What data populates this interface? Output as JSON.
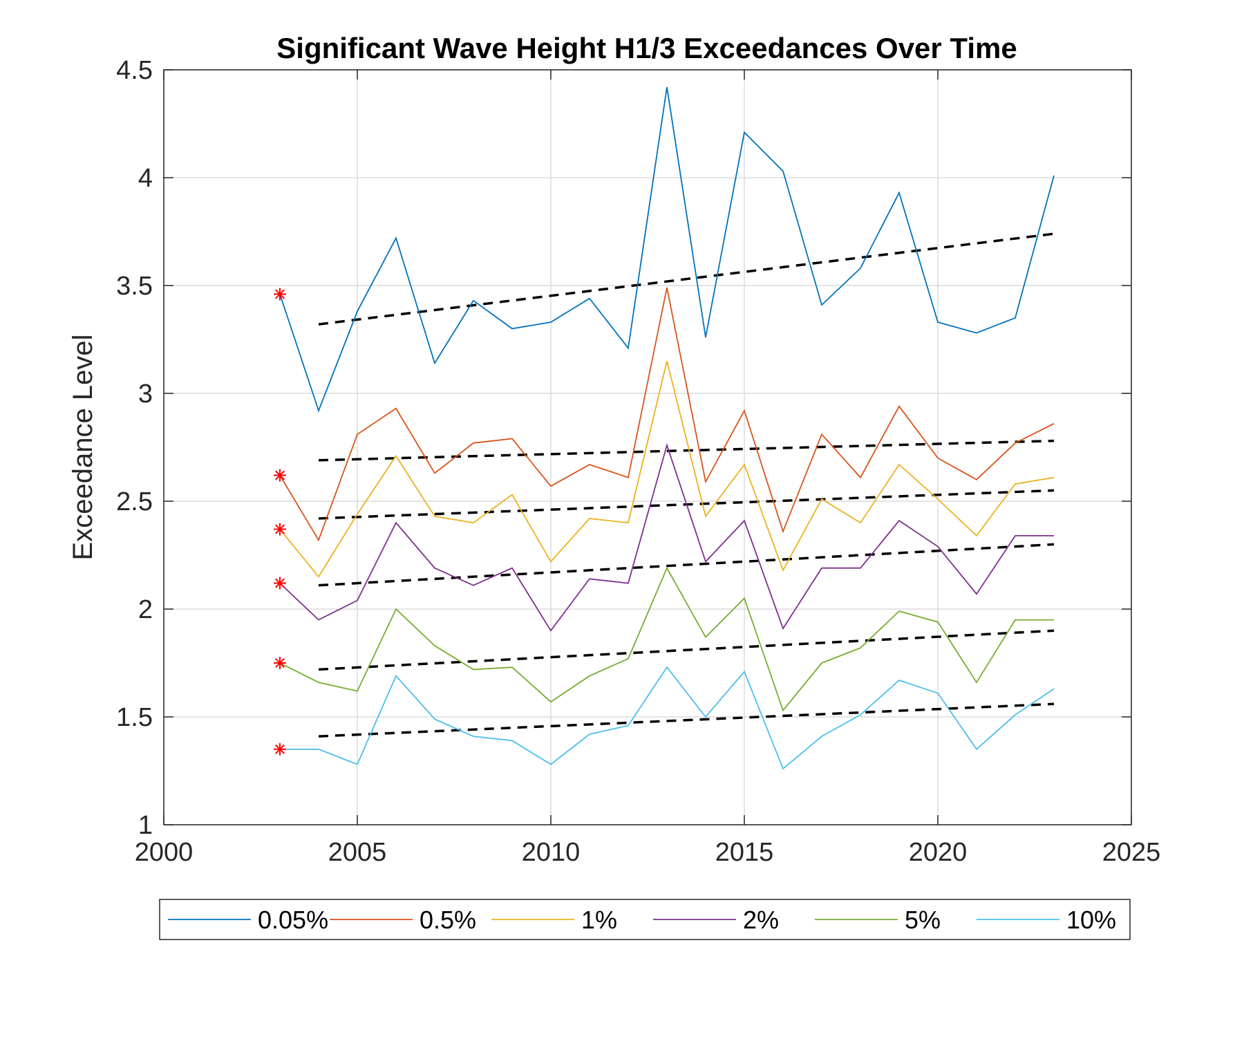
{
  "chart_data": {
    "type": "line",
    "title": "Significant Wave Height H1/3 Exceedances Over Time",
    "xlabel": "",
    "ylabel": "Exceedance Level",
    "xlim": [
      2000,
      2025
    ],
    "ylim": [
      1,
      4.5
    ],
    "xticks": [
      "2000",
      "2005",
      "2010",
      "2015",
      "2020",
      "2025"
    ],
    "yticks": [
      "1",
      "1.5",
      "2",
      "2.5",
      "3",
      "3.5",
      "4",
      "4.5"
    ],
    "grid": true,
    "legend": {
      "placement": "bottom-outside",
      "orientation": "horizontal"
    },
    "x": [
      2003,
      2004,
      2005,
      2006,
      2007,
      2008,
      2009,
      2010,
      2011,
      2012,
      2013,
      2014,
      2015,
      2016,
      2017,
      2018,
      2019,
      2020,
      2021,
      2022,
      2023
    ],
    "series": [
      {
        "name": "0.05%",
        "color": "#0072BD",
        "values": [
          3.46,
          2.92,
          3.38,
          3.72,
          3.14,
          3.43,
          3.3,
          3.33,
          3.44,
          3.21,
          4.42,
          3.26,
          4.21,
          4.03,
          3.41,
          3.58,
          3.93,
          3.33,
          3.28,
          3.35,
          4.01
        ],
        "trend": [
          3.32,
          3.74
        ]
      },
      {
        "name": "0.5%",
        "color": "#D95319",
        "values": [
          2.62,
          2.32,
          2.81,
          2.93,
          2.63,
          2.77,
          2.79,
          2.57,
          2.67,
          2.61,
          3.49,
          2.59,
          2.92,
          2.36,
          2.81,
          2.61,
          2.94,
          2.7,
          2.6,
          2.77,
          2.86
        ],
        "trend": [
          2.69,
          2.78
        ]
      },
      {
        "name": "1%",
        "color": "#EDB120",
        "values": [
          2.37,
          2.15,
          2.44,
          2.71,
          2.43,
          2.4,
          2.53,
          2.22,
          2.42,
          2.4,
          3.15,
          2.43,
          2.67,
          2.18,
          2.51,
          2.4,
          2.67,
          2.51,
          2.34,
          2.58,
          2.61
        ],
        "trend": [
          2.42,
          2.55
        ]
      },
      {
        "name": "2%",
        "color": "#7E2F8E",
        "values": [
          2.12,
          1.95,
          2.04,
          2.4,
          2.19,
          2.11,
          2.19,
          1.9,
          2.14,
          2.12,
          2.76,
          2.22,
          2.41,
          1.91,
          2.19,
          2.19,
          2.41,
          2.29,
          2.07,
          2.34,
          2.34
        ],
        "trend": [
          2.11,
          2.3
        ]
      },
      {
        "name": "5%",
        "color": "#77AC30",
        "values": [
          1.75,
          1.66,
          1.62,
          2.0,
          1.83,
          1.72,
          1.73,
          1.57,
          1.69,
          1.77,
          2.19,
          1.87,
          2.05,
          1.53,
          1.75,
          1.82,
          1.99,
          1.94,
          1.66,
          1.95,
          1.95
        ],
        "trend": [
          1.72,
          1.9
        ]
      },
      {
        "name": "10%",
        "color": "#4DBEEE",
        "values": [
          1.35,
          1.35,
          1.28,
          1.69,
          1.49,
          1.41,
          1.39,
          1.28,
          1.42,
          1.46,
          1.73,
          1.5,
          1.71,
          1.26,
          1.41,
          1.51,
          1.67,
          1.61,
          1.35,
          1.51,
          1.63
        ],
        "trend": [
          1.41,
          1.56
        ]
      }
    ],
    "trend_x": [
      2004,
      2023
    ],
    "trend_style": {
      "color": "#000000",
      "dash": "dashed"
    },
    "markers": {
      "x": 2003,
      "symbol": "asterisk",
      "color": "#FF0000"
    }
  }
}
